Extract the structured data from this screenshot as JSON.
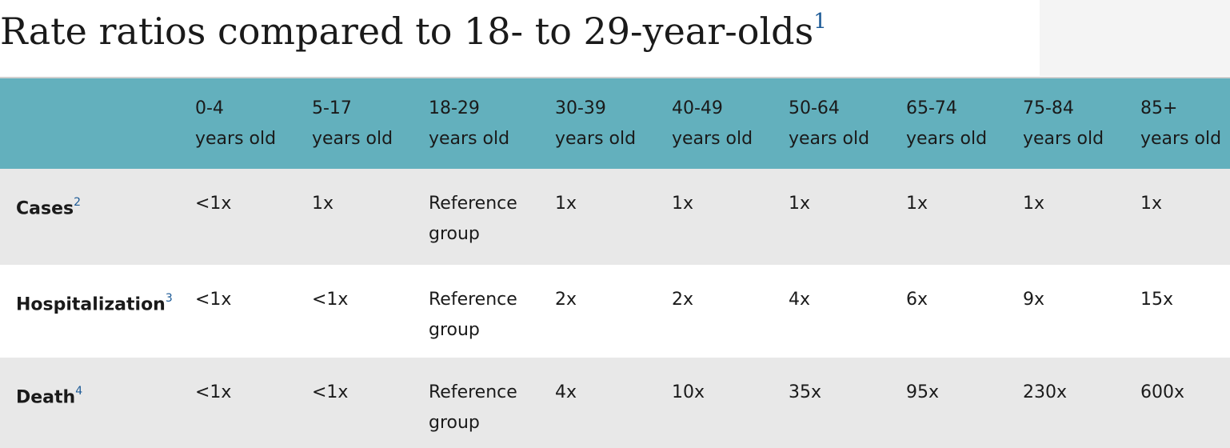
{
  "title": {
    "text": "Rate ratios compared to 18- to 29-year-olds",
    "footnote": "1"
  },
  "table": {
    "columns": [
      {
        "line1": "0-4",
        "line2": "years old"
      },
      {
        "line1": "5-17",
        "line2": "years old"
      },
      {
        "line1": "18-29",
        "line2": "years old"
      },
      {
        "line1": "30-39",
        "line2": "years old"
      },
      {
        "line1": "40-49",
        "line2": "years old"
      },
      {
        "line1": "50-64",
        "line2": "years old"
      },
      {
        "line1": "65-74",
        "line2": "years old"
      },
      {
        "line1": "75-84",
        "line2": "years old"
      },
      {
        "line1": "85+",
        "line2": "years old"
      }
    ],
    "rows": [
      {
        "label": "Cases",
        "footnote": "2",
        "values": [
          "<1x",
          "1x",
          "Reference group",
          "1x",
          "1x",
          "1x",
          "1x",
          "1x",
          "1x"
        ]
      },
      {
        "label": "Hospitalization",
        "footnote": "3",
        "values": [
          "<1x",
          "<1x",
          "Reference group",
          "2x",
          "2x",
          "4x",
          "6x",
          "9x",
          "15x"
        ]
      },
      {
        "label": "Death",
        "footnote": "4",
        "values": [
          "<1x",
          "<1x",
          "Reference group",
          "4x",
          "10x",
          "35x",
          "95x",
          "230x",
          "600x"
        ]
      }
    ]
  },
  "colors": {
    "header_bg": "#63b0bd",
    "row_alt_bg": "#e8e8e8",
    "footnote": "#1c5a96"
  }
}
